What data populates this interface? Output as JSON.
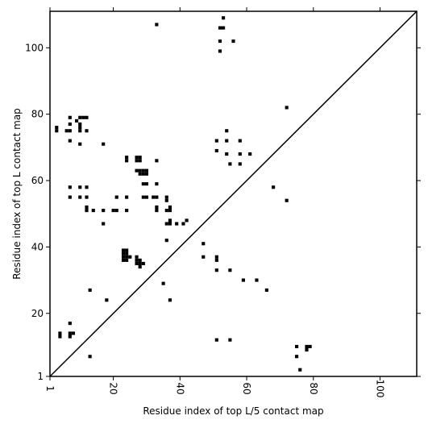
{
  "chart_data": {
    "type": "scatter",
    "title": "",
    "xlabel": "Residue index of top L/5 contact map",
    "ylabel": "Residue index of top L contact map",
    "xlim": [
      1,
      111
    ],
    "ylim": [
      1,
      111
    ],
    "xticks": [
      1,
      20,
      40,
      60,
      80,
      100
    ],
    "yticks": [
      1,
      20,
      40,
      60,
      80,
      100
    ],
    "grid": false,
    "diagonal": true,
    "marker_color": "#000000",
    "series": [
      {
        "values": [
          [
            3,
            75
          ],
          [
            3,
            76
          ],
          [
            6,
            75
          ],
          [
            7,
            72
          ],
          [
            7,
            75
          ],
          [
            7,
            77
          ],
          [
            7,
            79
          ],
          [
            9,
            78
          ],
          [
            10,
            71
          ],
          [
            10,
            75
          ],
          [
            10,
            76
          ],
          [
            10,
            77
          ],
          [
            10,
            79
          ],
          [
            11,
            79
          ],
          [
            12,
            75
          ],
          [
            12,
            79
          ],
          [
            17,
            71
          ],
          [
            7,
            55
          ],
          [
            7,
            58
          ],
          [
            10,
            55
          ],
          [
            10,
            58
          ],
          [
            12,
            51
          ],
          [
            12,
            52
          ],
          [
            12,
            55
          ],
          [
            12,
            58
          ],
          [
            14,
            51
          ],
          [
            17,
            47
          ],
          [
            17,
            51
          ],
          [
            20,
            51
          ],
          [
            21,
            51
          ],
          [
            21,
            55
          ],
          [
            24,
            51
          ],
          [
            24,
            55
          ],
          [
            24,
            66
          ],
          [
            24,
            67
          ],
          [
            27,
            63
          ],
          [
            27,
            66
          ],
          [
            27,
            67
          ],
          [
            28,
            62
          ],
          [
            28,
            63
          ],
          [
            28,
            66
          ],
          [
            28,
            67
          ],
          [
            29,
            62
          ],
          [
            29,
            63
          ],
          [
            30,
            62
          ],
          [
            30,
            63
          ],
          [
            29,
            59
          ],
          [
            30,
            59
          ],
          [
            29,
            55
          ],
          [
            30,
            55
          ],
          [
            32,
            55
          ],
          [
            33,
            55
          ],
          [
            33,
            51
          ],
          [
            33,
            52
          ],
          [
            33,
            59
          ],
          [
            33,
            66
          ],
          [
            23,
            36
          ],
          [
            23,
            37
          ],
          [
            23,
            38
          ],
          [
            23,
            39
          ],
          [
            24,
            36
          ],
          [
            24,
            37
          ],
          [
            24,
            38
          ],
          [
            24,
            39
          ],
          [
            25,
            37
          ],
          [
            27,
            35
          ],
          [
            27,
            36
          ],
          [
            27,
            37
          ],
          [
            28,
            34
          ],
          [
            28,
            35
          ],
          [
            28,
            36
          ],
          [
            29,
            35
          ],
          [
            36,
            42
          ],
          [
            36,
            47
          ],
          [
            36,
            51
          ],
          [
            36,
            54
          ],
          [
            36,
            55
          ],
          [
            37,
            47
          ],
          [
            37,
            48
          ],
          [
            37,
            51
          ],
          [
            37,
            52
          ],
          [
            39,
            47
          ],
          [
            41,
            47
          ],
          [
            42,
            48
          ],
          [
            35,
            29
          ],
          [
            37,
            24
          ],
          [
            33,
            107
          ],
          [
            4,
            13
          ],
          [
            4,
            14
          ],
          [
            7,
            13
          ],
          [
            7,
            14
          ],
          [
            7,
            17
          ],
          [
            8,
            14
          ],
          [
            13,
            7
          ],
          [
            13,
            27
          ],
          [
            18,
            24
          ],
          [
            47,
            37
          ],
          [
            47,
            41
          ],
          [
            51,
            33
          ],
          [
            51,
            36
          ],
          [
            51,
            37
          ],
          [
            55,
            33
          ],
          [
            59,
            30
          ],
          [
            63,
            30
          ],
          [
            66,
            27
          ],
          [
            68,
            58
          ],
          [
            72,
            54
          ],
          [
            72,
            82
          ],
          [
            51,
            69
          ],
          [
            51,
            72
          ],
          [
            53,
            106
          ],
          [
            52,
            106
          ],
          [
            52,
            99
          ],
          [
            52,
            102
          ],
          [
            53,
            109
          ],
          [
            54,
            68
          ],
          [
            54,
            72
          ],
          [
            54,
            75
          ],
          [
            55,
            65
          ],
          [
            56,
            102
          ],
          [
            58,
            65
          ],
          [
            58,
            68
          ],
          [
            58,
            72
          ],
          [
            61,
            68
          ],
          [
            51,
            12
          ],
          [
            55,
            12
          ],
          [
            75,
            7
          ],
          [
            75,
            10
          ],
          [
            76,
            3
          ],
          [
            78,
            9
          ],
          [
            78,
            10
          ],
          [
            79,
            10
          ]
        ]
      }
    ]
  }
}
